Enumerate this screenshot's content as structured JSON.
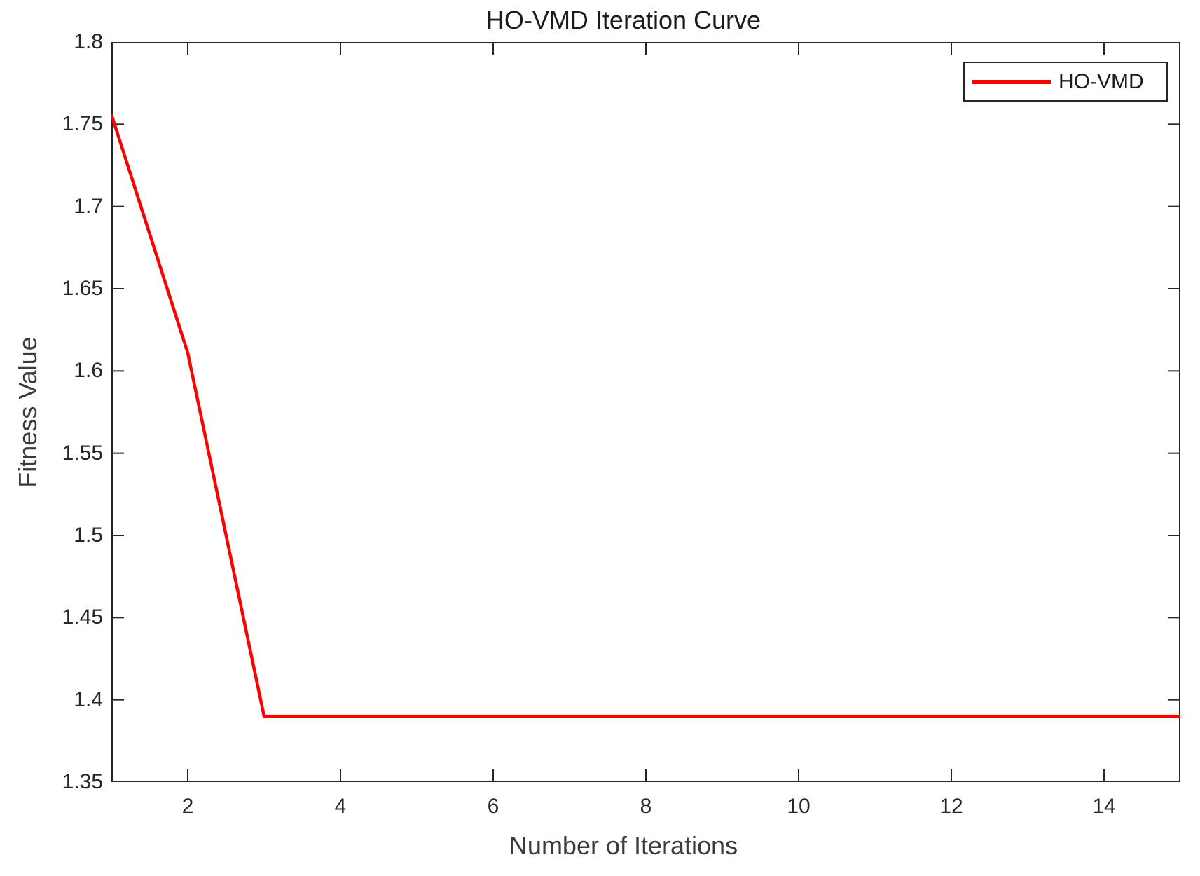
{
  "chart_data": {
    "type": "line",
    "title": "HO-VMD Iteration Curve",
    "xlabel": "Number of Iterations",
    "ylabel": "Fitness Value",
    "xlim": [
      1,
      15
    ],
    "ylim": [
      1.35,
      1.8
    ],
    "x_ticks": [
      2,
      4,
      6,
      8,
      10,
      12,
      14
    ],
    "x_tick_labels": [
      "2",
      "4",
      "6",
      "8",
      "10",
      "12",
      "14"
    ],
    "y_ticks": [
      1.35,
      1.4,
      1.45,
      1.5,
      1.55,
      1.6,
      1.65,
      1.7,
      1.75,
      1.8
    ],
    "y_tick_labels": [
      "1.35",
      "1.4",
      "1.45",
      "1.5",
      "1.55",
      "1.6",
      "1.65",
      "1.7",
      "1.75",
      "1.8"
    ],
    "grid": false,
    "legend": {
      "position": "top-right",
      "entries": [
        {
          "label": "HO-VMD",
          "color": "#ff0000"
        }
      ]
    },
    "series": [
      {
        "name": "HO-VMD",
        "color": "#ff0000",
        "x": [
          1,
          2,
          3,
          4,
          5,
          6,
          7,
          8,
          9,
          10,
          11,
          12,
          13,
          14,
          15
        ],
        "y": [
          1.756,
          1.611,
          1.39,
          1.39,
          1.39,
          1.39,
          1.39,
          1.39,
          1.39,
          1.39,
          1.39,
          1.39,
          1.39,
          1.39,
          1.39
        ]
      }
    ]
  },
  "colors": {
    "axis": "#262626",
    "text": "#262626",
    "series_red": "#ff0000",
    "background": "#ffffff"
  }
}
